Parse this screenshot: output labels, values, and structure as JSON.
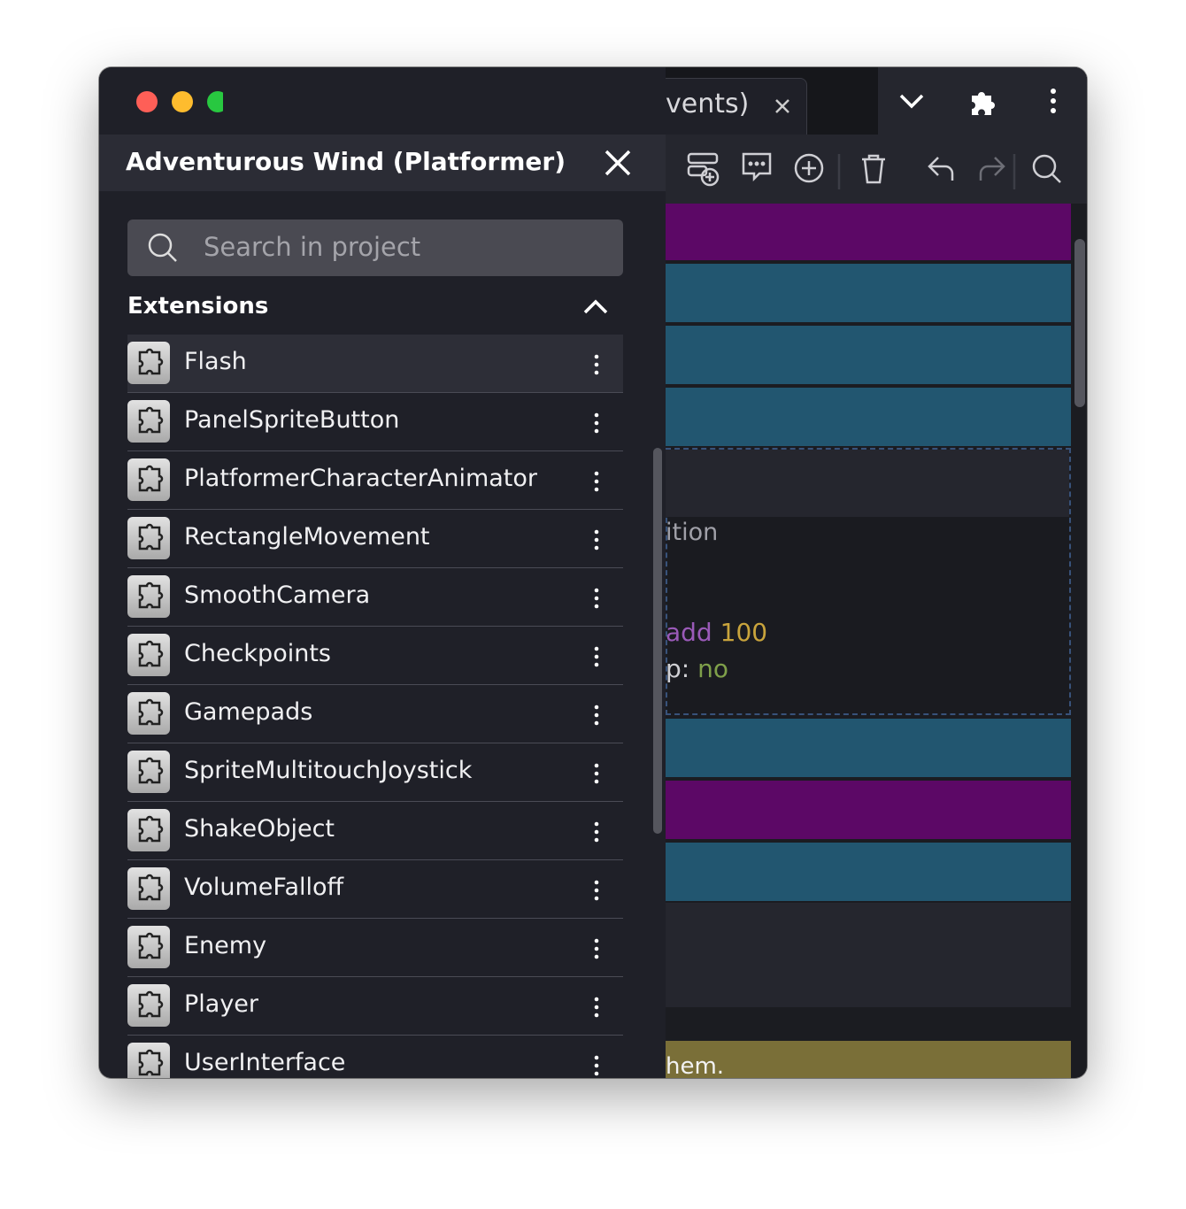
{
  "drawer": {
    "title": "Adventurous Wind (Platformer)",
    "search_placeholder": "Search in project",
    "section_title": "Extensions",
    "items": [
      "Flash",
      "PanelSpriteButton",
      "PlatformerCharacterAnimator",
      "RectangleMovement",
      "SmoothCamera",
      "Checkpoints",
      "Gamepads",
      "SpriteMultitouchJoystick",
      "ShakeObject",
      "VolumeFalloff",
      "Enemy",
      "Player",
      "UserInterface"
    ]
  },
  "editor": {
    "tab_label": "vents)",
    "condition_fragment": "ition",
    "action_verb": "add",
    "action_value": "100",
    "param_label": "p:",
    "param_value": "no",
    "comment_fragment": "hem."
  }
}
